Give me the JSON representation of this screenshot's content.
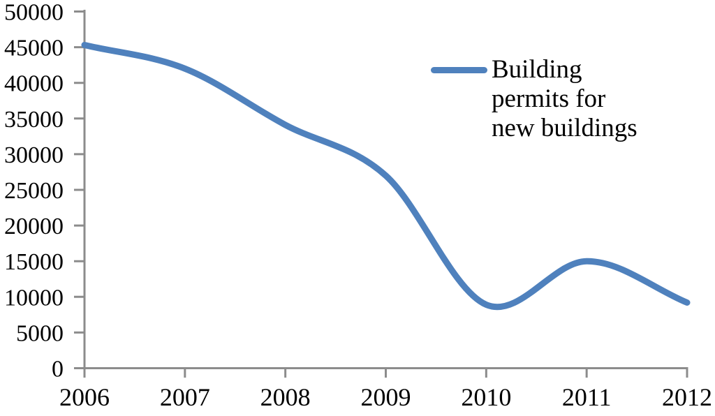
{
  "chart_data": {
    "type": "line",
    "title": "",
    "xlabel": "",
    "ylabel": "",
    "x": [
      2006,
      2007,
      2008,
      2009,
      2010,
      2011,
      2012
    ],
    "x_tick_labels": [
      "2006",
      "2007",
      "2008",
      "2009",
      "2010",
      "2011",
      "2012"
    ],
    "y_tick_labels": [
      "0",
      "5000",
      "10000",
      "15000",
      "20000",
      "25000",
      "30000",
      "35000",
      "40000",
      "45000",
      "50000"
    ],
    "ylim": [
      0,
      50000
    ],
    "ytick_step": 5000,
    "grid": false,
    "smooth": true,
    "series": [
      {
        "name": "Building permits for new buildings",
        "values": [
          45300,
          42000,
          34100,
          27000,
          8900,
          15000,
          9200
        ],
        "color": "#4F81BD"
      }
    ],
    "legend": {
      "position": "upper-right",
      "lines": [
        "Building",
        "permits for",
        "new buildings"
      ]
    },
    "colors": {
      "axis": "#8C8C8C",
      "text": "#000000",
      "background": "#FFFFFF"
    }
  }
}
